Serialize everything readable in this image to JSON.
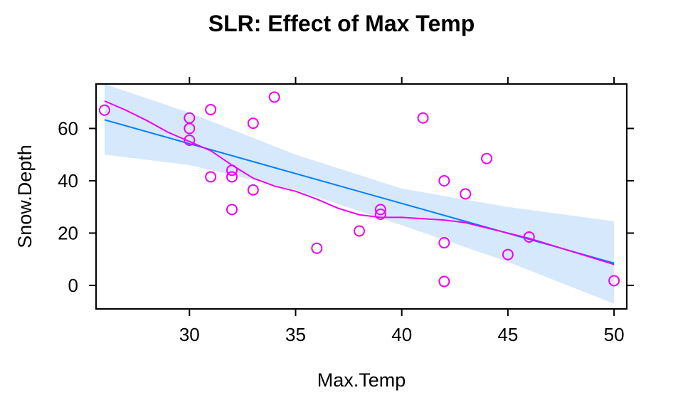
{
  "chart_data": {
    "type": "scatter",
    "title": "SLR: Effect of Max Temp",
    "xlabel": "Max.Temp",
    "ylabel": "Snow.Depth",
    "xlim": [
      25.6,
      50.6
    ],
    "ylim": [
      -9,
      77
    ],
    "x_ticks": [
      30,
      35,
      40,
      45,
      50
    ],
    "y_ticks": [
      0,
      20,
      40,
      60
    ],
    "points": [
      {
        "x": 26,
        "y": 67
      },
      {
        "x": 30,
        "y": 64
      },
      {
        "x": 30,
        "y": 60
      },
      {
        "x": 30,
        "y": 55.5
      },
      {
        "x": 31,
        "y": 67.2
      },
      {
        "x": 31,
        "y": 41.5
      },
      {
        "x": 32,
        "y": 44
      },
      {
        "x": 32,
        "y": 41.5
      },
      {
        "x": 32,
        "y": 29
      },
      {
        "x": 33,
        "y": 62
      },
      {
        "x": 33,
        "y": 36.5
      },
      {
        "x": 34,
        "y": 72
      },
      {
        "x": 36,
        "y": 14.2
      },
      {
        "x": 38,
        "y": 20.8
      },
      {
        "x": 39,
        "y": 29
      },
      {
        "x": 39,
        "y": 27.2
      },
      {
        "x": 41,
        "y": 64
      },
      {
        "x": 42,
        "y": 40
      },
      {
        "x": 42,
        "y": 16.3
      },
      {
        "x": 42,
        "y": 1.5
      },
      {
        "x": 43,
        "y": 35
      },
      {
        "x": 44,
        "y": 48.5
      },
      {
        "x": 45,
        "y": 11.8
      },
      {
        "x": 46,
        "y": 18.5
      },
      {
        "x": 50,
        "y": 1.8
      }
    ],
    "fit_line": {
      "x": [
        26,
        50
      ],
      "y": [
        63.3,
        8.5
      ]
    },
    "confidence_band": {
      "x": [
        26,
        30,
        35,
        40,
        45,
        50
      ],
      "lower": [
        50,
        46,
        36.5,
        23,
        9,
        -7
      ],
      "upper": [
        77,
        66,
        50,
        37,
        30,
        24.5
      ]
    },
    "smooth_line": {
      "x": [
        26,
        27,
        28,
        29,
        30,
        31,
        32,
        33,
        34,
        35,
        36,
        37,
        38,
        39,
        40,
        41,
        42,
        43,
        44,
        45,
        46,
        47,
        48,
        49,
        50
      ],
      "y": [
        70.5,
        67,
        63,
        58.5,
        55,
        51.5,
        46,
        41,
        38,
        36,
        33,
        29.5,
        27,
        26,
        26,
        25.5,
        25,
        24,
        22,
        20,
        18,
        15.5,
        13,
        10.5,
        8
      ]
    },
    "colors": {
      "points": "#ee00ee",
      "fit_line": "#0080ff",
      "band": "#d6e8fb",
      "smooth": "#ee00ee",
      "frame": "#000000"
    }
  }
}
